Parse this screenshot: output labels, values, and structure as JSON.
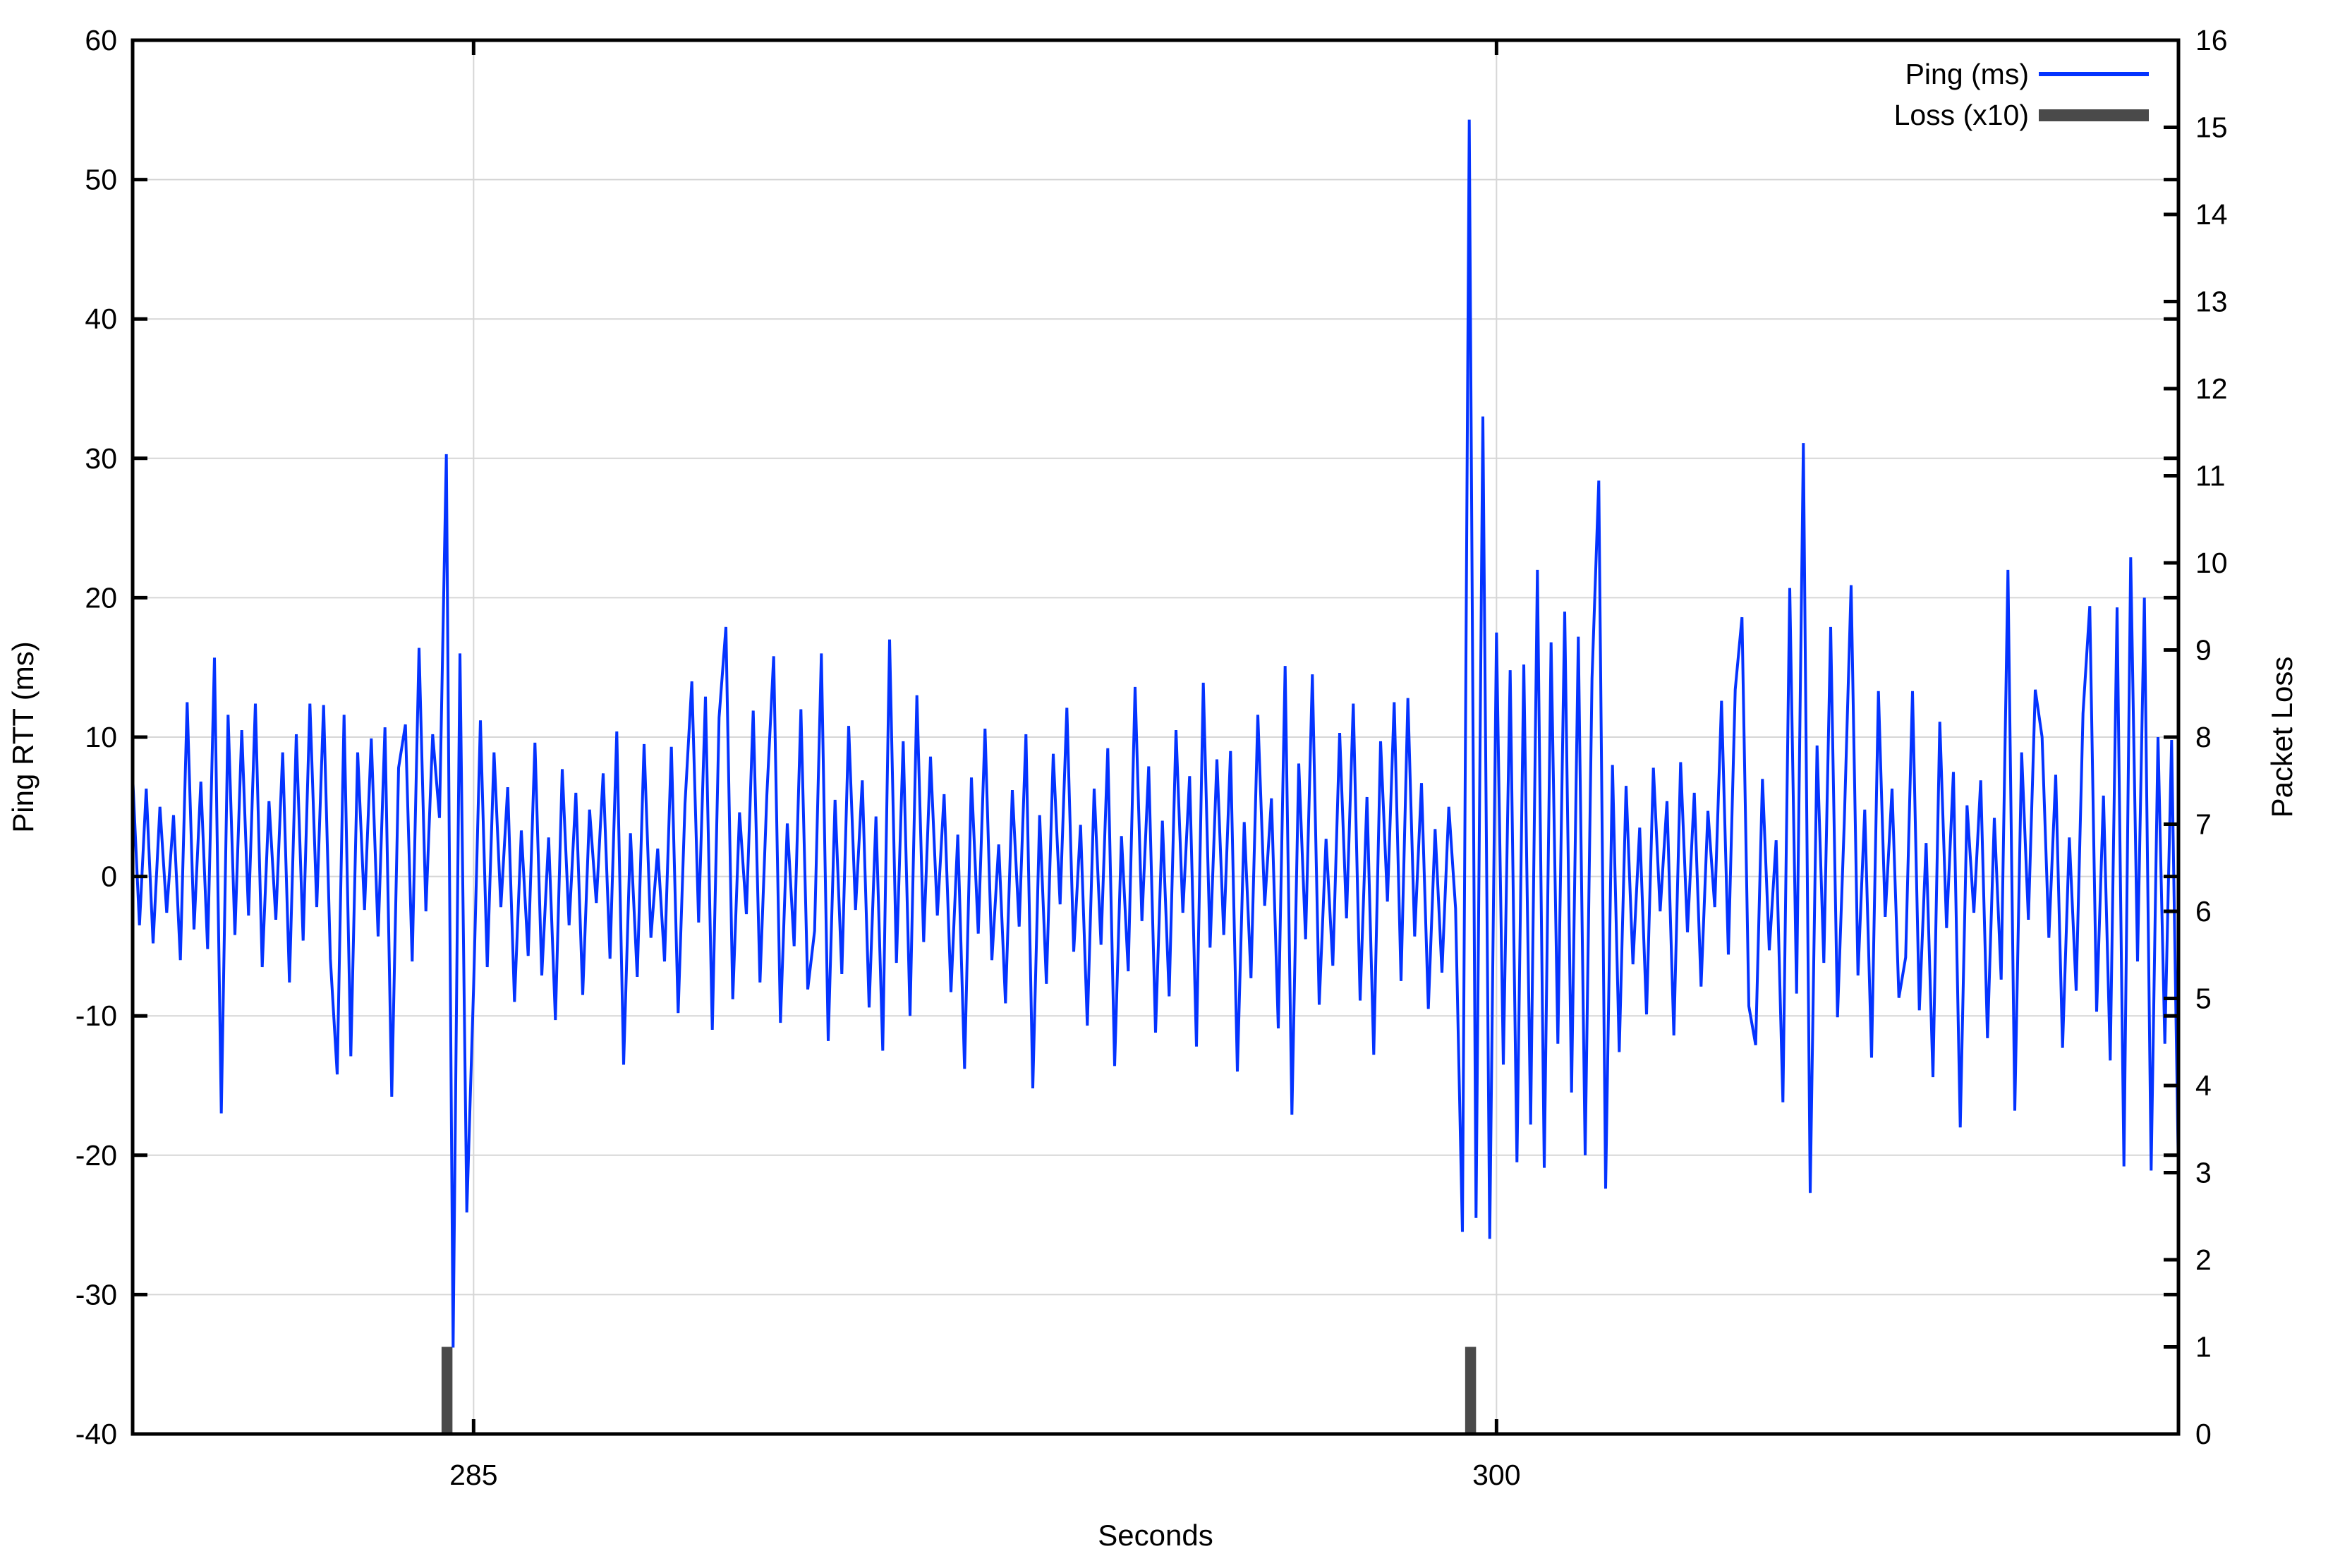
{
  "figure": {
    "background": "#ffffff"
  },
  "colors": {
    "ping_line": "#0433ff",
    "loss_bar": "#4a4a4a",
    "grid": "#d6d6d6",
    "axis": "#000000",
    "background": "#ffffff"
  },
  "legend": {
    "position": "top-right",
    "entries": [
      {
        "label": "Ping (ms)",
        "swatch": "line",
        "color": "#0433ff"
      },
      {
        "label": "Loss (x10)",
        "swatch": "box",
        "color": "#4a4a4a"
      }
    ]
  },
  "chart_data": {
    "type": "line",
    "title": "",
    "xlabel": "Seconds",
    "ylabel": "Ping RTT (ms)",
    "y2label": "Packet Loss",
    "xlim": [
      280,
      310
    ],
    "ylim": [
      -40,
      60
    ],
    "y2lim": [
      0,
      16
    ],
    "xticks": [
      285,
      300
    ],
    "yticks": [
      -40,
      -30,
      -20,
      -10,
      0,
      10,
      20,
      30,
      40,
      50,
      60
    ],
    "y2ticks": [
      0,
      1,
      2,
      3,
      4,
      5,
      6,
      7,
      8,
      9,
      10,
      11,
      12,
      13,
      14,
      15,
      16
    ],
    "grid": true,
    "series": [
      {
        "name": "Ping (ms)",
        "type": "line",
        "axis": "y1",
        "color": "#0433ff",
        "x_start": 280.0,
        "x_step": 0.1,
        "values": [
          7.2,
          -3.5,
          6.3,
          -4.8,
          5.0,
          -2.6,
          4.4,
          -6.0,
          12.5,
          -3.8,
          6.8,
          -5.2,
          15.7,
          -17.0,
          11.6,
          -4.2,
          10.5,
          -2.8,
          12.4,
          -6.5,
          5.4,
          -3.1,
          8.9,
          -7.6,
          10.2,
          -4.6,
          12.4,
          -2.2,
          12.3,
          -5.9,
          -14.2,
          11.6,
          -12.9,
          8.9,
          -2.4,
          9.9,
          -4.3,
          10.7,
          -15.8,
          7.8,
          10.9,
          -6.1,
          16.4,
          -2.5,
          10.2,
          4.2,
          30.3,
          -33.8,
          16.0,
          -24.1,
          -8.0,
          11.2,
          -6.5,
          8.9,
          -2.2,
          6.4,
          -9.0,
          3.3,
          -5.7,
          9.6,
          -7.1,
          2.8,
          -10.3,
          7.7,
          -3.5,
          6.0,
          -8.5,
          4.8,
          -1.9,
          7.4,
          -5.9,
          10.4,
          -13.5,
          3.1,
          -7.2,
          9.5,
          -4.4,
          2.0,
          -6.1,
          9.3,
          -9.8,
          5.2,
          14.0,
          -3.3,
          12.9,
          -11.0,
          11.4,
          17.9,
          -8.8,
          4.6,
          -2.7,
          11.9,
          -7.6,
          5.8,
          15.8,
          -10.5,
          3.8,
          -5.0,
          12.0,
          -8.1,
          -3.9,
          16.0,
          -11.8,
          5.5,
          -7.0,
          10.8,
          -2.4,
          6.9,
          -9.4,
          4.3,
          -12.5,
          17.0,
          -6.2,
          9.7,
          -10.0,
          13.0,
          -4.7,
          8.6,
          -2.8,
          5.9,
          -8.3,
          3.0,
          -13.8,
          7.1,
          -4.1,
          10.6,
          -6.0,
          2.3,
          -9.1,
          6.2,
          -3.6,
          10.2,
          -15.2,
          4.4,
          -7.7,
          8.8,
          -2.0,
          12.1,
          -5.4,
          3.7,
          -10.7,
          6.3,
          -4.9,
          9.2,
          -13.6,
          2.9,
          -6.8,
          13.6,
          -3.2,
          7.9,
          -11.2,
          4.0,
          -8.6,
          10.5,
          -2.6,
          7.2,
          -12.2,
          13.9,
          -5.1,
          8.4,
          -4.2,
          9.0,
          -14.0,
          3.9,
          -7.3,
          11.6,
          -2.1,
          5.6,
          -10.9,
          15.1,
          -17.1,
          8.1,
          -4.5,
          14.5,
          -9.2,
          2.7,
          -6.4,
          10.3,
          -3.0,
          12.4,
          -8.9,
          5.7,
          -12.8,
          9.7,
          -1.8,
          12.5,
          -7.5,
          12.8,
          -4.3,
          6.7,
          -9.5,
          3.4,
          -6.9,
          5.0,
          -2.3,
          -25.5,
          54.3,
          -24.5,
          33.0,
          -26.0,
          17.5,
          -13.5,
          14.8,
          -20.5,
          15.2,
          -17.8,
          22.0,
          -20.9,
          16.8,
          -12.0,
          19.0,
          -15.5,
          17.2,
          -20.0,
          14.2,
          28.4,
          -22.4,
          8.0,
          -12.6,
          6.5,
          -6.3,
          3.5,
          -9.9,
          7.8,
          -2.5,
          5.4,
          -11.4,
          8.2,
          -4.0,
          6.0,
          -7.9,
          4.7,
          -2.2,
          12.6,
          -5.6,
          13.4,
          18.6,
          -9.3,
          -12.1,
          7.0,
          -5.3,
          2.6,
          -16.2,
          20.7,
          -8.4,
          31.1,
          -22.7,
          9.4,
          -6.2,
          17.9,
          -10.1,
          3.9,
          20.9,
          -7.1,
          4.8,
          -13.0,
          13.3,
          -2.9,
          6.3,
          -8.7,
          -5.8,
          13.3,
          -9.6,
          2.4,
          -14.4,
          11.1,
          -3.7,
          7.5,
          -18.0,
          5.1,
          -2.6,
          6.9,
          -11.6,
          4.2,
          -7.4,
          22.0,
          -16.8,
          8.9,
          -3.1,
          13.4,
          10.0,
          -4.4,
          7.3,
          -12.3,
          2.8,
          -8.2,
          11.7,
          19.4,
          -9.7,
          5.8,
          -13.2,
          19.3,
          -20.8,
          22.9,
          -6.1,
          20.0,
          -21.1,
          10.0,
          -12.0,
          9.8,
          -21.3
        ]
      },
      {
        "name": "Loss (x10)",
        "type": "bars",
        "axis": "y2",
        "color": "#4a4a4a",
        "bar_width_seconds": 0.16,
        "points": [
          {
            "x": 284.61,
            "y": 1
          },
          {
            "x": 299.62,
            "y": 1
          }
        ]
      }
    ]
  }
}
